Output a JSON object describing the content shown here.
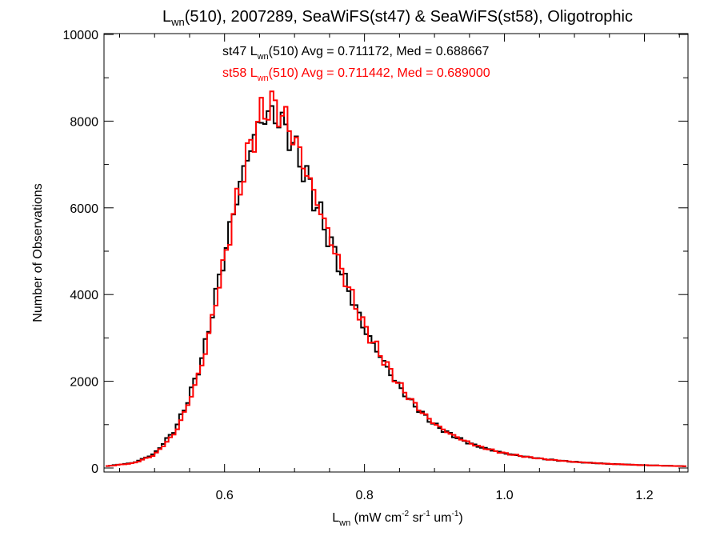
{
  "chart_data": {
    "type": "histogram-step",
    "title": {
      "prefix": "L",
      "sub": "wn",
      "rest": "(510), 2007289, SeaWiFS(st47) & SeaWiFS(st58), Oligotrophic"
    },
    "xlabel": {
      "prefix": "L",
      "sub": "wn",
      "p1": " (mW cm",
      "sup1": "-2",
      "p2": " sr",
      "sup2": "-1",
      "p3": " um",
      "sup3": "-1",
      "p4": ")"
    },
    "ylabel": "Number of Observations",
    "xlim": [
      0.43,
      1.26
    ],
    "ylim": [
      0,
      10000
    ],
    "x_ticks": [
      {
        "value": 0.6,
        "label": "0.6"
      },
      {
        "value": 0.8,
        "label": "0.8"
      },
      {
        "value": 1.0,
        "label": "1.0"
      },
      {
        "value": 1.2,
        "label": "1.2"
      }
    ],
    "y_ticks": [
      {
        "value": 0,
        "label": "0"
      },
      {
        "value": 2000,
        "label": "2000"
      },
      {
        "value": 4000,
        "label": "4000"
      },
      {
        "value": 6000,
        "label": "6000"
      },
      {
        "value": 8000,
        "label": "8000"
      },
      {
        "value": 10000,
        "label": "10000"
      }
    ],
    "grid": false,
    "bin_width": 0.005,
    "series": [
      {
        "name": "st47",
        "color": "#000000",
        "annotation": {
          "prefix": "st47 L",
          "sub": "wn",
          "rest": "(510) Avg = 0.711172, Med = 0.688667"
        },
        "points": [
          [
            0.43,
            40
          ],
          [
            0.47,
            120
          ],
          [
            0.5,
            330
          ],
          [
            0.53,
            900
          ],
          [
            0.55,
            1650
          ],
          [
            0.57,
            2650
          ],
          [
            0.58,
            3400
          ],
          [
            0.59,
            4200
          ],
          [
            0.6,
            4900
          ],
          [
            0.61,
            5700
          ],
          [
            0.62,
            6400
          ],
          [
            0.63,
            7000
          ],
          [
            0.64,
            7550
          ],
          [
            0.65,
            7950
          ],
          [
            0.66,
            8150
          ],
          [
            0.67,
            8150
          ],
          [
            0.68,
            8000
          ],
          [
            0.69,
            7750
          ],
          [
            0.7,
            7400
          ],
          [
            0.71,
            7000
          ],
          [
            0.72,
            6600
          ],
          [
            0.73,
            6150
          ],
          [
            0.74,
            5700
          ],
          [
            0.75,
            5250
          ],
          [
            0.76,
            4850
          ],
          [
            0.77,
            4400
          ],
          [
            0.78,
            4000
          ],
          [
            0.79,
            3600
          ],
          [
            0.8,
            3200
          ],
          [
            0.82,
            2650
          ],
          [
            0.84,
            2100
          ],
          [
            0.86,
            1650
          ],
          [
            0.88,
            1300
          ],
          [
            0.9,
            1000
          ],
          [
            0.92,
            800
          ],
          [
            0.94,
            640
          ],
          [
            0.96,
            510
          ],
          [
            0.98,
            420
          ],
          [
            1.0,
            340
          ],
          [
            1.03,
            260
          ],
          [
            1.06,
            200
          ],
          [
            1.1,
            140
          ],
          [
            1.15,
            95
          ],
          [
            1.2,
            65
          ],
          [
            1.26,
            40
          ]
        ]
      },
      {
        "name": "st58",
        "color": "#ff0000",
        "annotation": {
          "prefix": "st58 L",
          "sub": "wn",
          "rest": "(510) Avg = 0.711442, Med = 0.689000"
        },
        "points": [
          [
            0.43,
            40
          ],
          [
            0.47,
            110
          ],
          [
            0.5,
            300
          ],
          [
            0.53,
            820
          ],
          [
            0.55,
            1550
          ],
          [
            0.57,
            2500
          ],
          [
            0.58,
            3250
          ],
          [
            0.59,
            4050
          ],
          [
            0.6,
            4800
          ],
          [
            0.61,
            5600
          ],
          [
            0.62,
            6350
          ],
          [
            0.63,
            7000
          ],
          [
            0.64,
            7600
          ],
          [
            0.65,
            8050
          ],
          [
            0.66,
            8350
          ],
          [
            0.67,
            8350
          ],
          [
            0.68,
            8200
          ],
          [
            0.69,
            7950
          ],
          [
            0.7,
            7600
          ],
          [
            0.71,
            7150
          ],
          [
            0.72,
            6700
          ],
          [
            0.73,
            6250
          ],
          [
            0.74,
            5800
          ],
          [
            0.75,
            5350
          ],
          [
            0.76,
            4900
          ],
          [
            0.77,
            4450
          ],
          [
            0.78,
            4050
          ],
          [
            0.79,
            3650
          ],
          [
            0.8,
            3250
          ],
          [
            0.82,
            2700
          ],
          [
            0.84,
            2150
          ],
          [
            0.86,
            1700
          ],
          [
            0.88,
            1320
          ],
          [
            0.9,
            1020
          ],
          [
            0.92,
            810
          ],
          [
            0.94,
            650
          ],
          [
            0.96,
            515
          ],
          [
            0.98,
            420
          ],
          [
            1.0,
            340
          ],
          [
            1.03,
            260
          ],
          [
            1.06,
            200
          ],
          [
            1.1,
            140
          ],
          [
            1.15,
            95
          ],
          [
            1.2,
            65
          ],
          [
            1.26,
            40
          ]
        ]
      }
    ]
  }
}
